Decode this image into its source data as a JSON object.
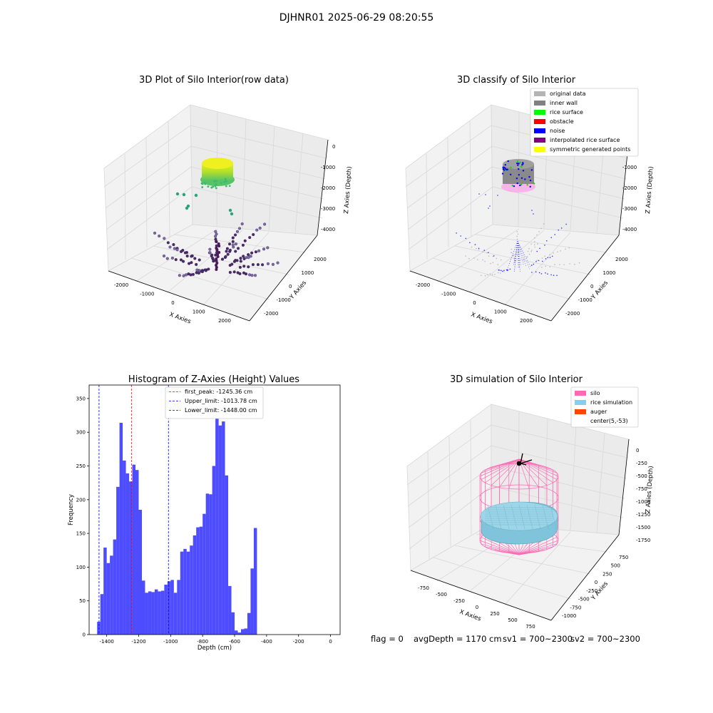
{
  "figure": {
    "title": "DJHNR01 2025-06-29 08:20:55"
  },
  "status": {
    "flag": "flag = 0",
    "avg_depth": "avgDepth = 1170 cm",
    "sv1": "sv1 = 700~2300",
    "sv2": "sv2 = 700~2300"
  },
  "panels": {
    "raw": {
      "title": "3D Plot of Silo Interior(row data)",
      "xlabel": "X Axies",
      "ylabel": "Y Axies",
      "zlabel": "Z Axies (Depth)",
      "x_ticks": [
        "-2000",
        "-1000",
        "0",
        "1000",
        "2000"
      ],
      "y_ticks": [
        "2000",
        "1000",
        "0",
        "-1000",
        "-2000"
      ],
      "z_ticks": [
        "0",
        "-1000",
        "-2000",
        "-3000",
        "-4000"
      ]
    },
    "classify": {
      "title": "3D classify of Silo Interior",
      "xlabel": "X Axies",
      "ylabel": "Y Axies",
      "zlabel": "Z Axies (Depth)",
      "x_ticks": [
        "-2000",
        "-1000",
        "0",
        "1000",
        "2000"
      ],
      "y_ticks": [
        "2000",
        "1000",
        "0",
        "-1000",
        "-2000"
      ],
      "z_ticks": [
        "0",
        "-1000",
        "-2000",
        "-3000",
        "-4000"
      ],
      "legend": [
        {
          "label": "original data",
          "color": "#b4b4b4"
        },
        {
          "label": "inner wall",
          "color": "#808080"
        },
        {
          "label": "rice surface",
          "color": "#00ff00"
        },
        {
          "label": "obstacle",
          "color": "#ff0000"
        },
        {
          "label": "noise",
          "color": "#0000ff"
        },
        {
          "label": "interpolated rice surface",
          "color": "#800080"
        },
        {
          "label": "symmetric generated points",
          "color": "#ffff00"
        }
      ]
    },
    "simulation": {
      "title": "3D simulation of Silo Interior",
      "xlabel": "X Axies",
      "ylabel": "Y Axies",
      "zlabel": "Z Axies (Depth)",
      "x_ticks": [
        "-750",
        "-500",
        "-250",
        "0",
        "250",
        "500",
        "750"
      ],
      "y_ticks": [
        "750",
        "500",
        "250",
        "0",
        "-250",
        "-500",
        "-750",
        "-1000"
      ],
      "z_ticks": [
        "0",
        "-250",
        "-500",
        "-750",
        "-1000",
        "-1250",
        "-1500",
        "-1750"
      ],
      "legend": [
        {
          "label": "silo",
          "color": "#ff69b4"
        },
        {
          "label": "rice simulation",
          "color": "#87ceeb"
        },
        {
          "label": "auger",
          "color": "#ff4500"
        },
        {
          "label": "center(5,-53)",
          "color": "#ffffff"
        }
      ]
    }
  },
  "chart_data": {
    "type": "bar",
    "title": "Histogram of Z-Axies (Height) Values",
    "xlabel": "Depth (cm)",
    "ylabel": "Frequency",
    "xlim": [
      -1510,
      60
    ],
    "ylim": [
      0,
      370
    ],
    "x_ticks": [
      -1400,
      -1200,
      -1000,
      -800,
      -600,
      -400,
      -200,
      0
    ],
    "y_ticks": [
      0,
      50,
      100,
      150,
      200,
      250,
      300,
      350
    ],
    "bin_start": -1460,
    "bin_width": 20,
    "bar_color": "#4d4dff",
    "values": [
      19,
      60,
      129,
      106,
      117,
      141,
      219,
      314,
      258,
      239,
      227,
      252,
      244,
      185,
      80,
      62,
      64,
      63,
      67,
      64,
      65,
      74,
      79,
      81,
      62,
      81,
      123,
      127,
      123,
      132,
      147,
      159,
      160,
      179,
      209,
      208,
      250,
      335,
      310,
      316,
      236,
      72,
      33,
      6,
      3,
      8,
      9,
      32,
      98,
      158
    ],
    "reference_lines": [
      {
        "label": "first_peak: -1245.36 cm",
        "x": -1245.36,
        "color": "#ff0000"
      },
      {
        "label": "Upper_limit: -1013.78 cm",
        "x": -1013.78,
        "color": "#0000ff"
      },
      {
        "label": "Lower_limit: -1448.00 cm",
        "x": -1448.0,
        "color": "#0000ff"
      }
    ],
    "legend_position": "upper-center"
  }
}
